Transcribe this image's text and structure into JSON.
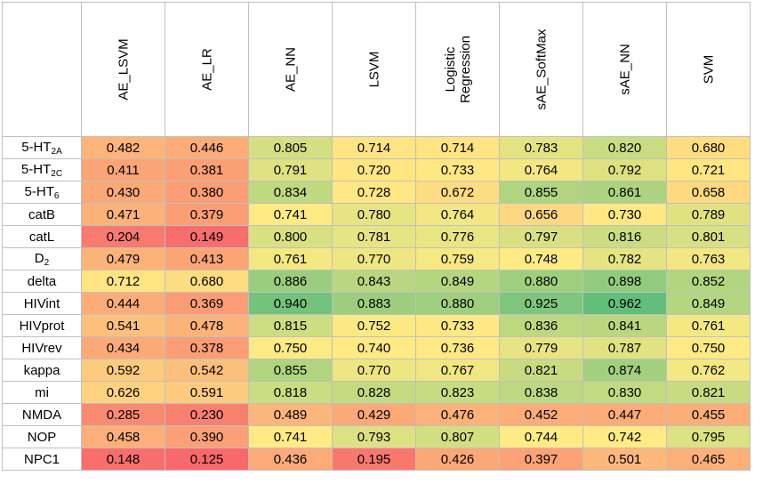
{
  "chart_data": {
    "type": "heatmap",
    "columns": [
      [
        "AE_LSVM"
      ],
      [
        "AE_LR"
      ],
      [
        "AE_NN"
      ],
      [
        "LSVM"
      ],
      [
        "Logistic",
        "Regression"
      ],
      [
        "sAE_SoftMax"
      ],
      [
        "sAE_NN"
      ],
      [
        "SVM"
      ]
    ],
    "rows": [
      {
        "label": "5-HT",
        "sub": "2A",
        "values": [
          0.482,
          0.446,
          0.805,
          0.714,
          0.714,
          0.783,
          0.82,
          0.68
        ]
      },
      {
        "label": "5-HT",
        "sub": "2C",
        "values": [
          0.411,
          0.381,
          0.791,
          0.72,
          0.733,
          0.764,
          0.792,
          0.721
        ]
      },
      {
        "label": "5-HT",
        "sub": "6",
        "values": [
          0.43,
          0.38,
          0.834,
          0.728,
          0.672,
          0.855,
          0.861,
          0.658
        ]
      },
      {
        "label": "catB",
        "sub": "",
        "values": [
          0.471,
          0.379,
          0.741,
          0.78,
          0.764,
          0.656,
          0.73,
          0.789
        ]
      },
      {
        "label": "catL",
        "sub": "",
        "values": [
          0.204,
          0.149,
          0.8,
          0.781,
          0.776,
          0.797,
          0.816,
          0.801
        ]
      },
      {
        "label": "D",
        "sub": "2",
        "values": [
          0.479,
          0.413,
          0.761,
          0.77,
          0.759,
          0.748,
          0.782,
          0.763
        ]
      },
      {
        "label": "delta",
        "sub": "",
        "values": [
          0.712,
          0.68,
          0.886,
          0.843,
          0.849,
          0.88,
          0.898,
          0.852
        ]
      },
      {
        "label": "HIVint",
        "sub": "",
        "values": [
          0.444,
          0.369,
          0.94,
          0.883,
          0.88,
          0.925,
          0.962,
          0.849
        ]
      },
      {
        "label": "HIVprot",
        "sub": "",
        "values": [
          0.541,
          0.478,
          0.815,
          0.752,
          0.733,
          0.836,
          0.841,
          0.761
        ]
      },
      {
        "label": "HIVrev",
        "sub": "",
        "values": [
          0.434,
          0.378,
          0.75,
          0.74,
          0.736,
          0.779,
          0.787,
          0.75
        ]
      },
      {
        "label": "kappa",
        "sub": "",
        "values": [
          0.592,
          0.542,
          0.855,
          0.77,
          0.767,
          0.821,
          0.874,
          0.762
        ]
      },
      {
        "label": "mi",
        "sub": "",
        "values": [
          0.626,
          0.591,
          0.818,
          0.828,
          0.823,
          0.838,
          0.83,
          0.821
        ]
      },
      {
        "label": "NMDA",
        "sub": "",
        "values": [
          0.285,
          0.23,
          0.489,
          0.429,
          0.476,
          0.452,
          0.447,
          0.455
        ]
      },
      {
        "label": "NOP",
        "sub": "",
        "values": [
          0.458,
          0.39,
          0.741,
          0.793,
          0.807,
          0.744,
          0.742,
          0.795
        ]
      },
      {
        "label": "NPC1",
        "sub": "",
        "values": [
          0.148,
          0.125,
          0.436,
          0.195,
          0.426,
          0.397,
          0.501,
          0.465
        ]
      }
    ],
    "color_scale": {
      "low": "#f8696b",
      "mid": "#ffeb84",
      "high": "#63be7b"
    }
  }
}
